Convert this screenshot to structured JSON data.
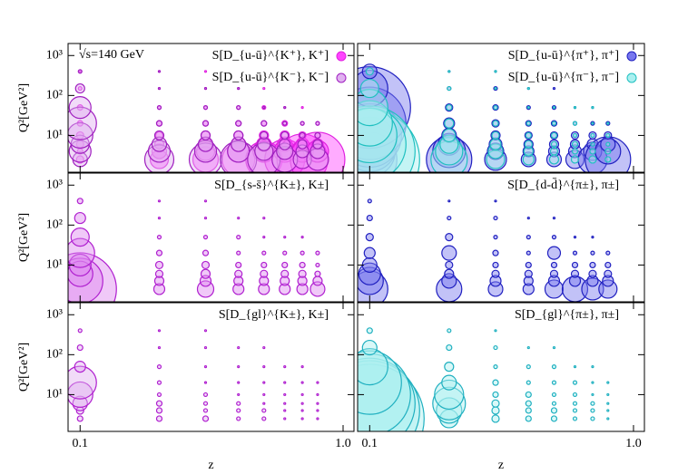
{
  "chart_data": [
    {
      "type": "bubble",
      "annotation": "√s=140 GeV",
      "ylabel": "Q²[GeV²]",
      "x": [
        0.1,
        0.2,
        0.3,
        0.4,
        0.5,
        0.6,
        0.7,
        0.8
      ],
      "y": [
        2.5,
        4,
        6,
        10,
        20,
        50,
        150,
        400
      ],
      "xlim": [
        0.09,
        1.1
      ],
      "ylim": [
        1.2,
        2000
      ],
      "log_x": true,
      "log_y": true,
      "xticks": [
        0.1,
        1
      ],
      "yticks": [
        {
          "value": 10,
          "label": "10¹"
        },
        {
          "value": 100,
          "label": "10²"
        },
        {
          "value": 1000,
          "label": "10³"
        }
      ],
      "series": [
        {
          "name": "S[D_{u-ū}^{K⁺}, K⁺]",
          "color": "#ff44ff",
          "edgecolor": "#e020e0",
          "sizes": [
            [
              4,
              3,
              4,
              4,
              3,
              3,
              2,
              1
            ],
            [
              10,
              8,
              5,
              4,
              3,
              2,
              1,
              1
            ],
            [
              14,
              10,
              7,
              5,
              3,
              2,
              1,
              1
            ],
            [
              18,
              12,
              8,
              5,
              3,
              2,
              1,
              null
            ],
            [
              20,
              12,
              8,
              5,
              3,
              2,
              1,
              null
            ],
            [
              22,
              12,
              8,
              5,
              3,
              1,
              null,
              null
            ],
            [
              28,
              12,
              7,
              4,
              2,
              1,
              null,
              null
            ],
            [
              30,
              12,
              6,
              3,
              2,
              null,
              null,
              null
            ]
          ]
        },
        {
          "name": "S[D_{u-ū}^{K⁻}, K⁻]",
          "color": "#e0b0f0",
          "edgecolor": "#a020c0",
          "sizes": [
            [
              8,
              12,
              10,
              14,
              18,
              12,
              5,
              2
            ],
            [
              16,
              12,
              8,
              5,
              3,
              2,
              1,
              1
            ],
            [
              18,
              12,
              8,
              5,
              3,
              2,
              1,
              null
            ],
            [
              20,
              12,
              8,
              5,
              3,
              2,
              1,
              null
            ],
            [
              18,
              10,
              7,
              4,
              3,
              1,
              null,
              null
            ],
            [
              14,
              9,
              6,
              4,
              2,
              1,
              null,
              null
            ],
            [
              10,
              7,
              5,
              3,
              2,
              null,
              null,
              null
            ],
            [
              12,
              8,
              5,
              3,
              2,
              null,
              null,
              null
            ]
          ]
        }
      ]
    },
    {
      "type": "bubble",
      "x": [
        0.1,
        0.2,
        0.3,
        0.4,
        0.5,
        0.6,
        0.7,
        0.8
      ],
      "y": [
        2.5,
        4,
        6,
        10,
        20,
        50,
        150,
        400
      ],
      "xlim": [
        0.09,
        1.1
      ],
      "ylim": [
        1.2,
        2000
      ],
      "log_x": true,
      "log_y": true,
      "xticks": [
        0.1,
        1
      ],
      "yticks": [
        10,
        100,
        1000
      ],
      "series": [
        {
          "name": "S[D_{u-ū}^{π⁺}, π⁺]",
          "color": "#7777ee",
          "edgecolor": "#2020c0",
          "sizes": [
            [
              30,
              28,
              30,
              35,
              40,
              45,
              20,
              8
            ],
            [
              25,
              18,
              12,
              8,
              6,
              4,
              2,
              1
            ],
            [
              12,
              9,
              7,
              5,
              4,
              3,
              2,
              1
            ],
            [
              8,
              6,
              5,
              4,
              3,
              2,
              1,
              null
            ],
            [
              8,
              6,
              5,
              4,
              3,
              2,
              1,
              null
            ],
            [
              10,
              7,
              5,
              4,
              2,
              1,
              null,
              null
            ],
            [
              16,
              10,
              6,
              4,
              2,
              1,
              null,
              null
            ],
            [
              25,
              14,
              8,
              4,
              2,
              null,
              null,
              null
            ]
          ]
        },
        {
          "name": "S[D_{u-ū}^{π⁻}, π⁻]",
          "color": "#aaf0f0",
          "edgecolor": "#20c0c0",
          "sizes": [
            [
              55,
              50,
              40,
              30,
              25,
              20,
              10,
              4
            ],
            [
              20,
              15,
              10,
              7,
              5,
              3,
              2,
              1
            ],
            [
              10,
              8,
              6,
              4,
              3,
              2,
              1,
              1
            ],
            [
              6,
              5,
              4,
              3,
              2,
              1,
              1,
              null
            ],
            [
              5,
              4,
              3,
              3,
              2,
              1,
              null,
              null
            ],
            [
              4,
              3,
              3,
              2,
              2,
              1,
              null,
              null
            ],
            [
              4,
              3,
              2,
              2,
              1,
              1,
              null,
              null
            ],
            [
              3,
              3,
              2,
              2,
              1,
              null,
              null,
              null
            ]
          ]
        }
      ]
    },
    {
      "type": "bubble",
      "ylabel": "Q²[GeV²]",
      "x": [
        0.1,
        0.2,
        0.3,
        0.4,
        0.5,
        0.6,
        0.7,
        0.8
      ],
      "y": [
        2.5,
        4,
        6,
        10,
        20,
        50,
        150,
        400
      ],
      "xlim": [
        0.09,
        1.1
      ],
      "ylim": [
        1.2,
        2000
      ],
      "log_x": true,
      "log_y": true,
      "xticks": [
        0.1,
        1
      ],
      "yticks": [
        {
          "value": 10,
          "label": "10¹"
        },
        {
          "value": 100,
          "label": "10²"
        },
        {
          "value": 1000,
          "label": "10³"
        }
      ],
      "series": [
        {
          "name": "S[D_{s-s̄}^{K±}, K±]",
          "color": "#dd88f0",
          "edgecolor": "#b020d0",
          "sizes": [
            [
              40,
              25,
              14,
              12,
              16,
              10,
              6,
              3
            ],
            [
              6,
              5,
              4,
              4,
              3,
              2,
              1,
              1
            ],
            [
              9,
              6,
              5,
              4,
              3,
              2,
              1,
              1
            ],
            [
              6,
              5,
              4,
              3,
              2,
              2,
              1,
              null
            ],
            [
              6,
              5,
              4,
              3,
              2,
              1,
              1,
              null
            ],
            [
              6,
              5,
              4,
              3,
              2,
              1,
              null,
              null
            ],
            [
              6,
              5,
              4,
              3,
              2,
              1,
              null,
              null
            ],
            [
              8,
              5,
              3,
              2,
              2,
              null,
              null,
              null
            ]
          ]
        }
      ]
    },
    {
      "type": "bubble",
      "x": [
        0.1,
        0.2,
        0.3,
        0.4,
        0.5,
        0.6,
        0.7,
        0.8
      ],
      "y": [
        2.5,
        4,
        6,
        10,
        20,
        50,
        150,
        400
      ],
      "xlim": [
        0.09,
        1.1
      ],
      "ylim": [
        1.2,
        2000
      ],
      "log_x": true,
      "log_y": true,
      "xticks": [
        0.1,
        1
      ],
      "yticks": [
        10,
        100,
        1000
      ],
      "series": [
        {
          "name": "S[D_{d-d̄}^{π±}, π±]",
          "color": "#7777ee",
          "edgecolor": "#2020c0",
          "sizes": [
            [
              20,
              15,
              12,
              8,
              6,
              4,
              3,
              2
            ],
            [
              14,
              8,
              5,
              4,
              8,
              4,
              2,
              1
            ],
            [
              8,
              6,
              4,
              3,
              3,
              2,
              2,
              1
            ],
            [
              6,
              5,
              4,
              3,
              2,
              2,
              1,
              null
            ],
            [
              10,
              6,
              4,
              3,
              7,
              2,
              1,
              null
            ],
            [
              14,
              6,
              4,
              3,
              2,
              1,
              null,
              null
            ],
            [
              12,
              6,
              4,
              3,
              2,
              1,
              null,
              null
            ],
            [
              10,
              6,
              4,
              3,
              2,
              null,
              null,
              null
            ]
          ]
        }
      ]
    },
    {
      "type": "bubble",
      "ylabel": "Q²[GeV²]",
      "xlabel": "z",
      "x": [
        0.1,
        0.2,
        0.3,
        0.4,
        0.5,
        0.6,
        0.7,
        0.8
      ],
      "y": [
        2.5,
        4,
        6,
        10,
        20,
        50,
        150,
        400
      ],
      "xlim": [
        0.09,
        1.1
      ],
      "ylim": [
        1.2,
        2000
      ],
      "log_x": true,
      "log_y": true,
      "xticks": [
        0.1,
        {
          "value": 1,
          "label": "1.0"
        }
      ],
      "yticks": [
        {
          "value": 10,
          "label": "10¹"
        },
        {
          "value": 100,
          "label": "10²"
        },
        {
          "value": 1000,
          "label": "10³"
        }
      ],
      "series": [
        {
          "name": "S[D_{gl}^{K±}, K±]",
          "color": "#e0b0f0",
          "edgecolor": "#b020d0",
          "sizes": [
            [
              3,
              4,
              8,
              14,
              18,
              6,
              3,
              2
            ],
            [
              3,
              3,
              3,
              2,
              2,
              2,
              1,
              1
            ],
            [
              3,
              2,
              2,
              2,
              1,
              1,
              1,
              1
            ],
            [
              2,
              2,
              2,
              1,
              1,
              1,
              1,
              null
            ],
            [
              2,
              2,
              1,
              1,
              1,
              1,
              1,
              null
            ],
            [
              1,
              1,
              1,
              1,
              1,
              1,
              null,
              null
            ],
            [
              1,
              1,
              1,
              1,
              1,
              1,
              null,
              null
            ],
            [
              1,
              1,
              1,
              1,
              1,
              null,
              null,
              null
            ]
          ]
        }
      ]
    },
    {
      "type": "bubble",
      "xlabel": "z",
      "x": [
        0.1,
        0.2,
        0.3,
        0.4,
        0.5,
        0.6,
        0.7,
        0.8
      ],
      "y": [
        2.5,
        4,
        6,
        10,
        20,
        50,
        150,
        400
      ],
      "xlim": [
        0.09,
        1.1
      ],
      "ylim": [
        1.2,
        2000
      ],
      "log_x": true,
      "log_y": true,
      "xticks": [
        0.1,
        {
          "value": 1,
          "label": "1.0"
        }
      ],
      "yticks": [
        10,
        100,
        1000
      ],
      "series": [
        {
          "name": "S[D_{gl}^{π±}, π±]",
          "color": "#aaf0f0",
          "edgecolor": "#20b0c0",
          "sizes": [
            [
              60,
              55,
              50,
              45,
              35,
              20,
              8,
              3
            ],
            [
              10,
              14,
              18,
              16,
              8,
              5,
              3,
              2
            ],
            [
              4,
              4,
              4,
              3,
              3,
              2,
              2,
              1
            ],
            [
              3,
              3,
              3,
              3,
              2,
              2,
              1,
              null
            ],
            [
              3,
              3,
              2,
              2,
              2,
              2,
              1,
              null
            ],
            [
              2,
              2,
              2,
              2,
              2,
              1,
              null,
              null
            ],
            [
              2,
              2,
              2,
              1,
              1,
              1,
              null,
              null
            ],
            [
              1,
              1,
              1,
              1,
              1,
              null,
              null,
              null
            ]
          ]
        }
      ]
    }
  ]
}
